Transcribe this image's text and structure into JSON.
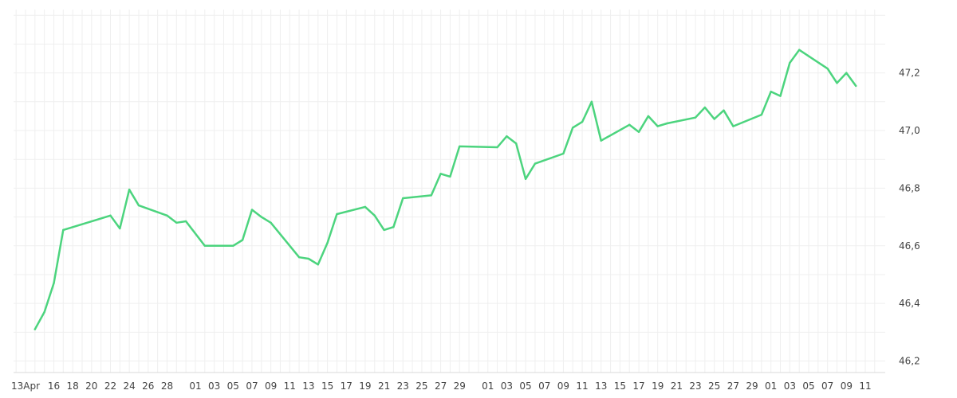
{
  "chart_data": {
    "type": "line",
    "title": "",
    "xlabel": "",
    "ylabel": "",
    "x_tick_labels": [
      "13Apr",
      "16",
      "18",
      "20",
      "22",
      "24",
      "26",
      "28",
      "01",
      "03",
      "05",
      "07",
      "09",
      "11",
      "13",
      "15",
      "17",
      "19",
      "21",
      "23",
      "25",
      "27",
      "29",
      "01",
      "03",
      "05",
      "07",
      "09",
      "11",
      "13",
      "15",
      "17",
      "19",
      "21",
      "23",
      "25",
      "27",
      "29",
      "01",
      "03",
      "05",
      "07",
      "09",
      "11"
    ],
    "y_ticks": [
      "46,2",
      "46,4",
      "46,6",
      "46,8",
      "47,0",
      "47,2"
    ],
    "ylim": [
      46.16,
      47.42
    ],
    "grid": true,
    "y_axis_side": "right",
    "series": [
      {
        "color": "#4cd47e",
        "x": [
          "2025-04-14",
          "2025-04-15",
          "2025-04-16",
          "2025-04-17",
          "2025-04-22",
          "2025-04-23",
          "2025-04-24",
          "2025-04-25",
          "2025-04-28",
          "2025-04-29",
          "2025-04-30",
          "2025-05-02",
          "2025-05-05",
          "2025-05-06",
          "2025-05-07",
          "2025-05-08",
          "2025-05-09",
          "2025-05-12",
          "2025-05-13",
          "2025-05-14",
          "2025-05-15",
          "2025-05-16",
          "2025-05-19",
          "2025-05-20",
          "2025-05-21",
          "2025-05-22",
          "2025-05-23",
          "2025-05-26",
          "2025-05-27",
          "2025-05-28",
          "2025-05-29",
          "2025-06-02",
          "2025-06-03",
          "2025-06-04",
          "2025-06-05",
          "2025-06-06",
          "2025-06-09",
          "2025-06-10",
          "2025-06-11",
          "2025-06-12",
          "2025-06-13",
          "2025-06-16",
          "2025-06-17",
          "2025-06-18",
          "2025-06-19",
          "2025-06-20",
          "2025-06-23",
          "2025-06-24",
          "2025-06-25",
          "2025-06-26",
          "2025-06-27",
          "2025-06-30",
          "2025-07-01",
          "2025-07-02",
          "2025-07-03",
          "2025-07-04",
          "2025-07-07",
          "2025-07-08",
          "2025-07-09",
          "2025-07-10"
        ],
        "values": [
          46.31,
          46.37,
          46.47,
          46.655,
          46.705,
          46.66,
          46.795,
          46.74,
          46.705,
          46.68,
          46.685,
          46.6,
          46.6,
          46.62,
          46.725,
          46.7,
          46.68,
          46.56,
          46.555,
          46.535,
          46.61,
          46.71,
          46.735,
          46.705,
          46.655,
          46.665,
          46.765,
          46.775,
          46.85,
          46.84,
          46.945,
          46.942,
          46.98,
          46.955,
          46.832,
          46.885,
          46.92,
          47.01,
          47.03,
          47.1,
          46.965,
          47.02,
          46.995,
          47.05,
          47.015,
          47.025,
          47.045,
          47.08,
          47.04,
          47.07,
          47.015,
          47.055,
          47.135,
          47.12,
          47.235,
          47.28,
          47.215,
          47.165,
          47.2,
          47.155
        ]
      }
    ]
  }
}
